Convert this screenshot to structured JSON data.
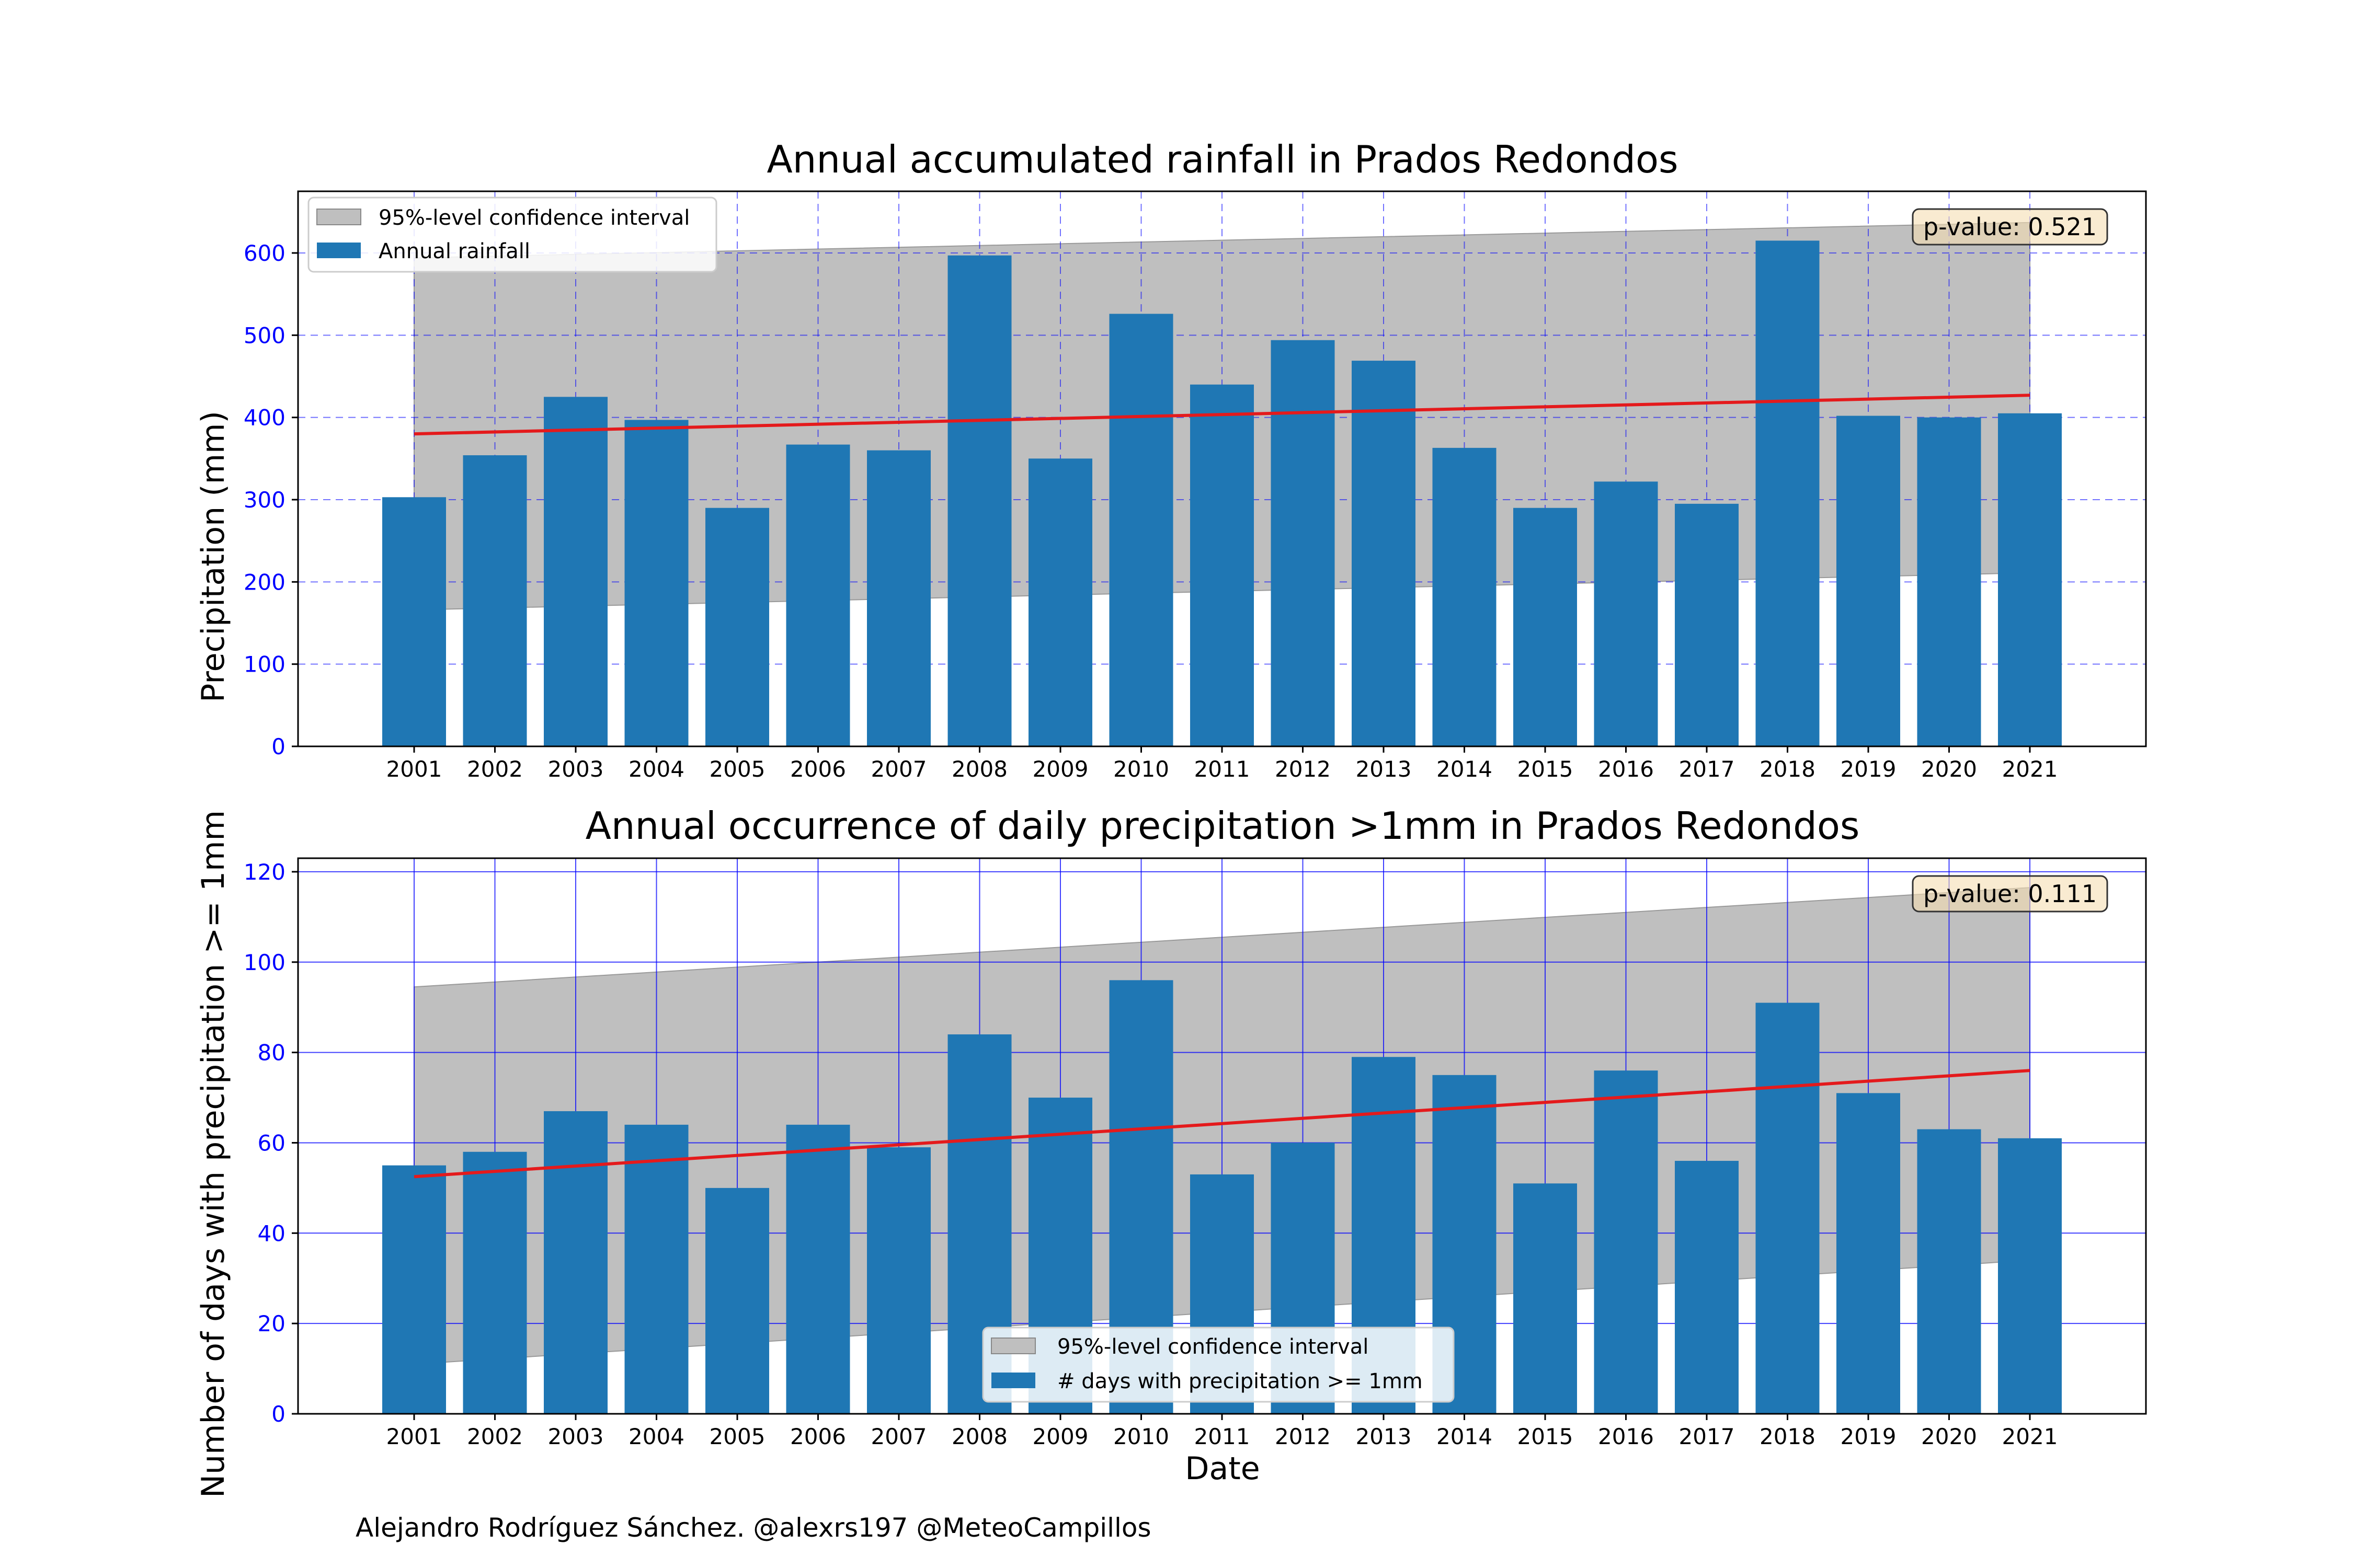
{
  "chart_data": [
    {
      "type": "bar",
      "title": "Annual accumulated rainfall in Prados Redondos",
      "xlabel": "",
      "ylabel": "Precipitation (mm)",
      "ylim": [
        0,
        675
      ],
      "yticks": [
        0,
        100,
        200,
        300,
        400,
        500,
        600
      ],
      "categories": [
        "2001",
        "2002",
        "2003",
        "2004",
        "2005",
        "2006",
        "2007",
        "2008",
        "2009",
        "2010",
        "2011",
        "2012",
        "2013",
        "2014",
        "2015",
        "2016",
        "2017",
        "2018",
        "2019",
        "2020",
        "2021"
      ],
      "series": [
        {
          "name": "Annual rainfall",
          "color": "#1f77b4",
          "values": [
            303,
            354,
            425,
            397,
            290,
            367,
            360,
            597,
            350,
            526,
            440,
            494,
            469,
            363,
            290,
            322,
            295,
            615,
            402,
            400,
            405
          ]
        }
      ],
      "trend": {
        "color": "#e41a1c",
        "start": 380,
        "end": 427
      },
      "confidence_interval": {
        "name": "95%-level confidence interval",
        "color": "#bfbfbf",
        "lower": [
          166,
          211
        ],
        "upper": [
          594,
          637
        ]
      },
      "annotation": "p-value: 0.521",
      "legend": "top-left",
      "grid": {
        "on": true,
        "style": "dashed",
        "color": "#0000ff"
      }
    },
    {
      "type": "bar",
      "title": "Annual occurrence of daily precipitation >1mm in Prados Redondos",
      "xlabel": "Date",
      "ylabel": "Number of days with precipitation >= 1mm",
      "ylim": [
        0,
        123
      ],
      "yticks": [
        0,
        20,
        40,
        60,
        80,
        100,
        120
      ],
      "categories": [
        "2001",
        "2002",
        "2003",
        "2004",
        "2005",
        "2006",
        "2007",
        "2008",
        "2009",
        "2010",
        "2011",
        "2012",
        "2013",
        "2014",
        "2015",
        "2016",
        "2017",
        "2018",
        "2019",
        "2020",
        "2021"
      ],
      "series": [
        {
          "name": "# days with precipitation >= 1mm",
          "color": "#1f77b4",
          "values": [
            55,
            58,
            67,
            64,
            50,
            64,
            59,
            84,
            70,
            96,
            53,
            60,
            79,
            75,
            51,
            76,
            56,
            91,
            71,
            63,
            61
          ]
        }
      ],
      "trend": {
        "color": "#e41a1c",
        "start": 52.5,
        "end": 76
      },
      "confidence_interval": {
        "name": "95%-level confidence interval",
        "color": "#bfbfbf",
        "lower": [
          11,
          34
        ],
        "upper": [
          94.5,
          116.5
        ]
      },
      "annotation": "p-value: 0.111",
      "legend": "bottom-center",
      "grid": {
        "on": true,
        "style": "solid",
        "color": "#0000ff"
      }
    }
  ],
  "credit": "Alejandro Rodríguez Sánchez. @alexrs197 @MeteoCampillos"
}
